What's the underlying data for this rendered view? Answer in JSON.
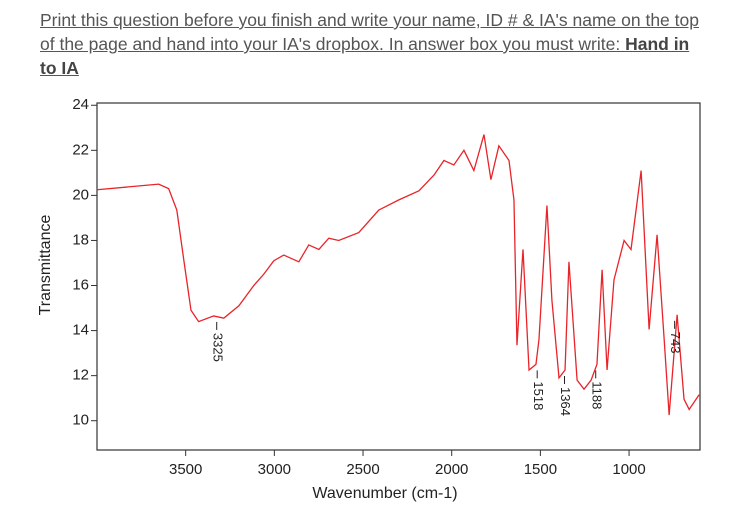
{
  "instructions": {
    "text": "Print this question before you finish and write your name, ID # & IA's name on the top of the page and hand into your IA's dropbox.  In answer box you must write: ",
    "emphasis": "Hand in to IA"
  },
  "chart_data": {
    "type": "line",
    "x_label": "Wavenumber (cm-1)",
    "y_label": "Transmittance",
    "xlim": [
      4000,
      600
    ],
    "ylim": [
      8.7,
      24.1
    ],
    "xticks": [
      3500,
      3000,
      2500,
      2000,
      1500,
      1000
    ],
    "yticks": [
      10,
      12,
      14,
      16,
      18,
      20,
      22,
      24
    ],
    "peak_labels": [
      3325,
      1518,
      1364,
      1188,
      743
    ],
    "series": [
      {
        "color": "#e8242a",
        "x": [
          4000,
          3652,
          3596,
          3550,
          3510,
          3470,
          3427,
          3342,
          3285,
          3200,
          3116,
          3060,
          3003,
          2947,
          2862,
          2806,
          2749,
          2693,
          2637,
          2524,
          2411,
          2298,
          2185,
          2100,
          2044,
          1988,
          1931,
          1875,
          1818,
          1779,
          1734,
          1677,
          1649,
          1632,
          1598,
          1564,
          1525,
          1508,
          1463,
          1435,
          1395,
          1361,
          1339,
          1293,
          1254,
          1214,
          1181,
          1152,
          1124,
          1085,
          1028,
          989,
          932,
          887,
          842,
          802,
          774,
          729,
          690,
          661,
          605
        ],
        "values": [
          20.25,
          20.5,
          20.3,
          19.35,
          17.1,
          14.9,
          14.4,
          14.65,
          14.55,
          15.1,
          16.0,
          16.5,
          17.1,
          17.35,
          17.05,
          17.8,
          17.6,
          18.1,
          18.0,
          18.35,
          19.35,
          19.8,
          20.2,
          20.9,
          21.55,
          21.35,
          22.0,
          21.1,
          22.7,
          20.7,
          22.2,
          21.55,
          19.8,
          13.35,
          17.6,
          12.25,
          12.5,
          13.6,
          19.55,
          15.35,
          11.9,
          12.25,
          17.05,
          11.8,
          11.4,
          11.8,
          12.5,
          16.7,
          12.25,
          16.25,
          18.0,
          17.6,
          21.1,
          14.05,
          18.25,
          13.6,
          10.25,
          14.7,
          10.95,
          10.5,
          11.15
        ]
      }
    ]
  }
}
